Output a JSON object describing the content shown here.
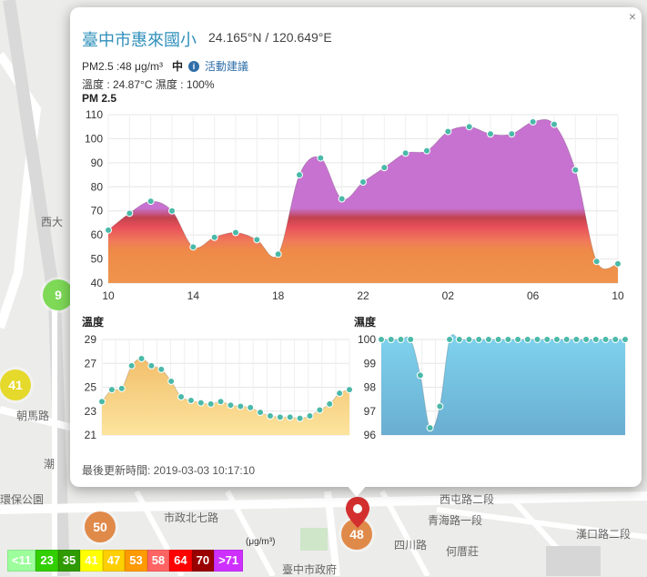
{
  "popup": {
    "title": "臺中市惠來國小",
    "coords": "24.165°N / 120.649°E",
    "pm_text": "PM2.5 :48 μg/m³",
    "level": "中",
    "advice": "活動建議",
    "temp_hum": "溫度 : 24.87°C 濕度 : 100%",
    "close": "×",
    "updated": "最後更新時間: 2019-03-03 10:17:10"
  },
  "map": {
    "labels": [
      {
        "text": "潮",
        "x": 48,
        "y": 501
      },
      {
        "text": "西大",
        "x": 45,
        "y": 235
      },
      {
        "text": "朝馬路",
        "x": 18,
        "y": 448
      },
      {
        "text": "環保公園",
        "x": 0,
        "y": 540
      },
      {
        "text": "市政北七路",
        "x": 180,
        "y": 560
      },
      {
        "text": "西屯路二段",
        "x": 483,
        "y": 540
      },
      {
        "text": "青海路一段",
        "x": 470,
        "y": 563
      },
      {
        "text": "何厝莊",
        "x": 490,
        "y": 597
      },
      {
        "text": "臺中市政府",
        "x": 310,
        "y": 617
      },
      {
        "text": "四川路",
        "x": 433,
        "y": 590
      },
      {
        "text": "漢口路二段",
        "x": 633,
        "y": 578
      }
    ],
    "markers": [
      {
        "value": "9",
        "color": "#7ed957",
        "x": 47,
        "y": 307
      },
      {
        "value": "41",
        "color": "#e5d92b",
        "x": 0,
        "y": 406
      },
      {
        "value": "50",
        "color": "#e08a4a",
        "x": 93,
        "y": 562
      },
      {
        "value": "48",
        "color": "#e08a4a",
        "x": 375,
        "y": 570
      }
    ]
  },
  "legend": {
    "unit": "(μg/m³)",
    "items": [
      {
        "label": "<11",
        "color": "#9cff9c"
      },
      {
        "label": "23",
        "color": "#31cf00"
      },
      {
        "label": "35",
        "color": "#2f9b00"
      },
      {
        "label": "41",
        "color": "#ffff00"
      },
      {
        "label": "47",
        "color": "#ffcf00"
      },
      {
        "label": "53",
        "color": "#ff9a00"
      },
      {
        "label": "58",
        "color": "#ff6464"
      },
      {
        "label": "64",
        "color": "#ff0000"
      },
      {
        "label": "70",
        "color": "#990000"
      },
      {
        "label": ">71",
        "color": "#ce30ff"
      }
    ]
  },
  "chart_data": [
    {
      "type": "area",
      "title": "PM 2.5",
      "x_ticks": [
        "10",
        "14",
        "18",
        "22",
        "02",
        "06",
        "10"
      ],
      "x": [
        0,
        1,
        2,
        3,
        4,
        5,
        6,
        7,
        8,
        9,
        10,
        11,
        12,
        13,
        14,
        15,
        16,
        17,
        18,
        19,
        20,
        21,
        22,
        23,
        24
      ],
      "values": [
        62,
        69,
        74,
        70,
        55,
        59,
        61,
        58,
        52,
        85,
        92,
        75,
        82,
        88,
        94,
        95,
        103,
        105,
        102,
        102,
        107,
        106,
        87,
        49,
        48
      ],
      "y_ticks": [
        "40",
        "50",
        "60",
        "70",
        "80",
        "90",
        "100",
        "110"
      ],
      "ylim": [
        40,
        110
      ]
    },
    {
      "type": "area",
      "title": "溫度",
      "x": [
        0,
        1,
        2,
        3,
        4,
        5,
        6,
        7,
        8,
        9,
        10,
        11,
        12,
        13,
        14,
        15,
        16,
        17,
        18,
        19,
        20,
        21,
        22,
        23,
        24,
        25
      ],
      "values": [
        23.8,
        24.8,
        24.9,
        26.8,
        27.4,
        26.8,
        26.5,
        25.5,
        24.2,
        23.9,
        23.7,
        23.6,
        23.8,
        23.5,
        23.4,
        23.3,
        22.9,
        22.6,
        22.5,
        22.5,
        22.4,
        22.6,
        23.1,
        23.6,
        24.5,
        24.8
      ],
      "y_ticks": [
        "21",
        "23",
        "25",
        "27",
        "29"
      ],
      "ylim": [
        21,
        29
      ]
    },
    {
      "type": "area",
      "title": "濕度",
      "x": [
        0,
        1,
        2,
        3,
        4,
        5,
        6,
        7,
        8,
        9,
        10,
        11,
        12,
        13,
        14,
        15,
        16,
        17,
        18,
        19,
        20,
        21,
        22,
        23,
        24,
        25
      ],
      "values": [
        100,
        100,
        100,
        100,
        98.5,
        96.3,
        97.2,
        100,
        100,
        100,
        100,
        100,
        100,
        100,
        100,
        100,
        100,
        100,
        100,
        100,
        100,
        100,
        100,
        100,
        100,
        100
      ],
      "y_ticks": [
        "96",
        "97",
        "98",
        "99",
        "100"
      ],
      "ylim": [
        96,
        100
      ]
    }
  ]
}
